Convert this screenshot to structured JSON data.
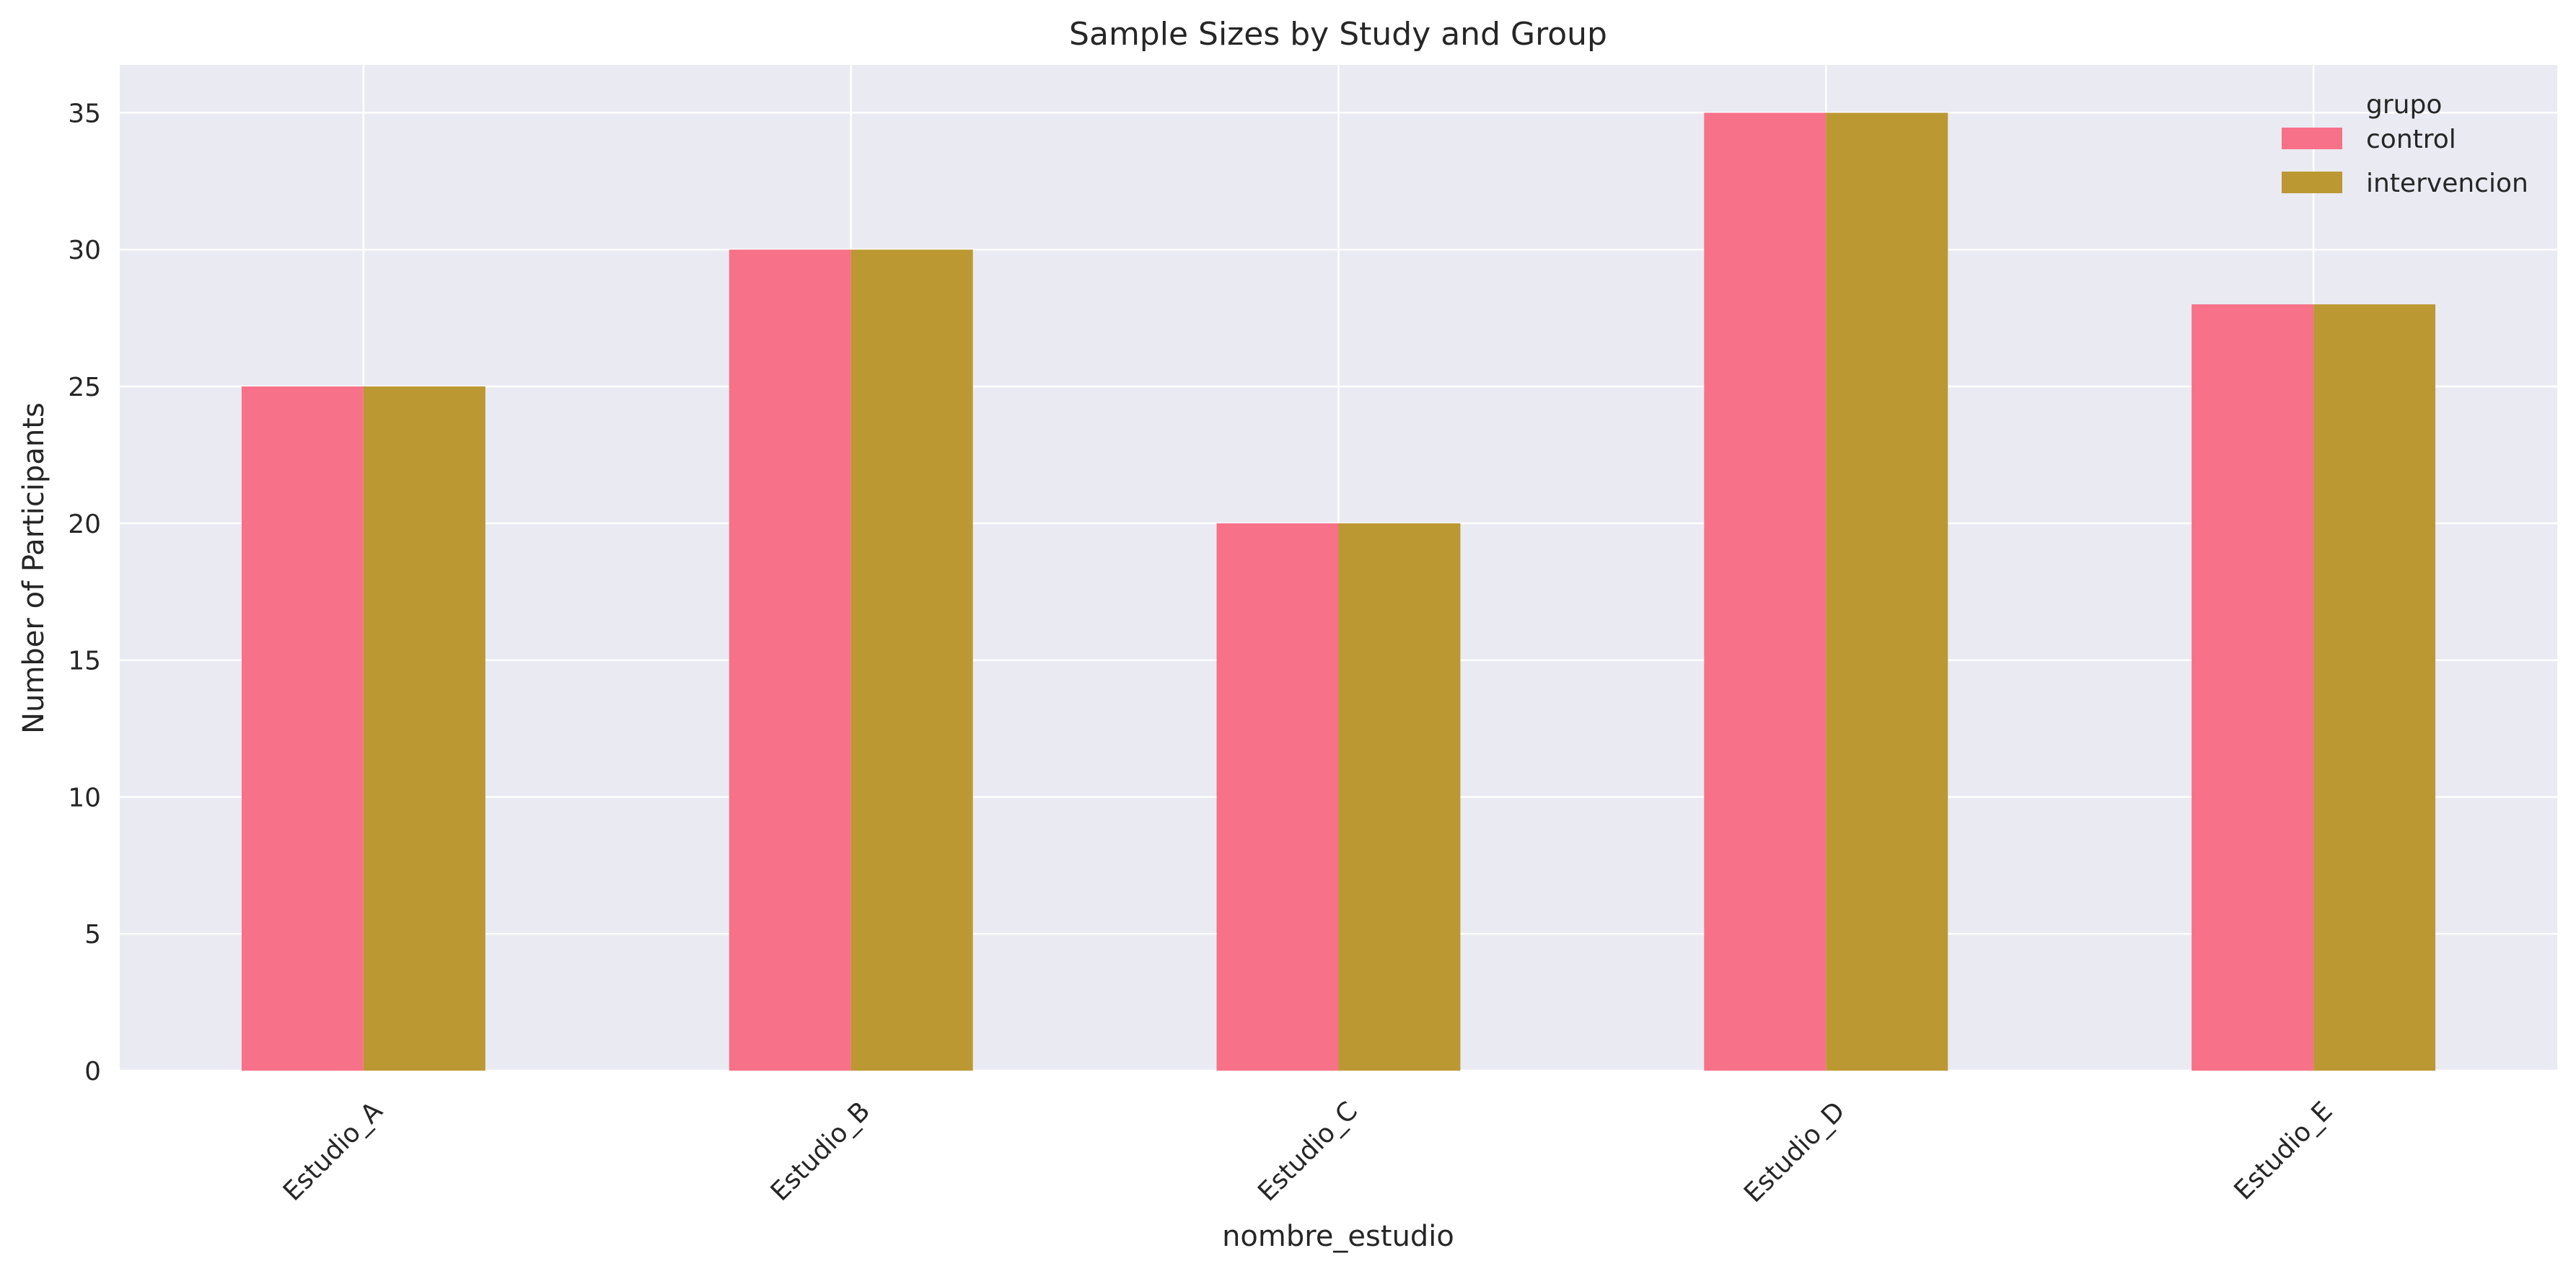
{
  "chart_data": {
    "type": "bar",
    "title": "Sample Sizes by Study and Group",
    "xlabel": "nombre_estudio",
    "ylabel": "Number of Participants",
    "categories": [
      "Estudio_A",
      "Estudio_B",
      "Estudio_C",
      "Estudio_D",
      "Estudio_E"
    ],
    "series": [
      {
        "name": "control",
        "values": [
          25,
          30,
          20,
          35,
          28
        ],
        "color": "#f77189"
      },
      {
        "name": "intervencion",
        "values": [
          25,
          30,
          20,
          35,
          28
        ],
        "color": "#bb9832"
      }
    ],
    "ylim": [
      0,
      36.75
    ],
    "yticks": [
      0,
      5,
      10,
      15,
      20,
      25,
      30,
      35
    ],
    "grid": true,
    "legend": {
      "title": "grupo",
      "placement": "top-right"
    },
    "background_color": "#eaeaf2",
    "grid_color": "#ffffff"
  }
}
